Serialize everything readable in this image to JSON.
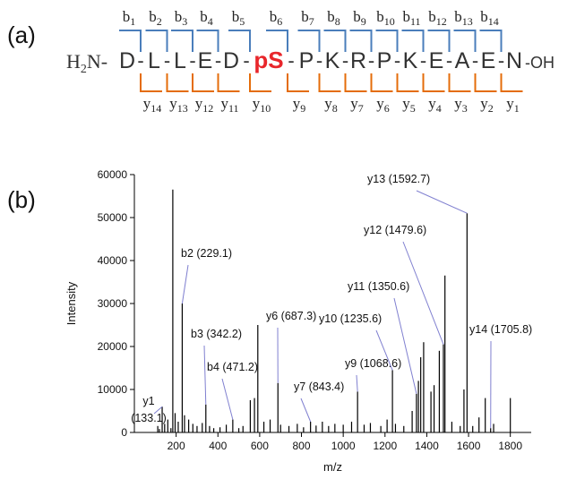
{
  "panel_a": {
    "label": "(a)",
    "n_term": {
      "text": "H",
      "sub": "2",
      "rest": "N-"
    },
    "residues": [
      "D",
      "L",
      "L",
      "E",
      "D",
      "pS",
      "P",
      "K",
      "R",
      "P",
      "K",
      "E",
      "A",
      "E",
      "N"
    ],
    "separator": "-",
    "c_term": "-OH",
    "highlight": {
      "index": 5,
      "color": "#e8262b"
    },
    "b_ions": {
      "letter": "b",
      "numbers": [
        1,
        2,
        3,
        4,
        5,
        6,
        7,
        8,
        9,
        10,
        11,
        12,
        13,
        14
      ],
      "color": "#4a7ebb"
    },
    "y_ions": {
      "letter": "y",
      "numbers": [
        14,
        13,
        12,
        11,
        10,
        9,
        8,
        7,
        6,
        5,
        4,
        3,
        2,
        1
      ],
      "color": "#e46c0a"
    }
  },
  "panel_b": {
    "label": "(b)"
  },
  "chart_data": {
    "type": "bar",
    "xlabel": "m/z",
    "ylabel": "Intensity",
    "color": "#000000",
    "xlim": [
      0,
      1900
    ],
    "ylim": [
      0,
      60000
    ],
    "xticks": [
      200,
      400,
      600,
      800,
      1000,
      1200,
      1400,
      1600,
      1800
    ],
    "yticks": [
      0,
      10000,
      20000,
      30000,
      40000,
      50000,
      60000
    ],
    "x": [
      112,
      120,
      145,
      160,
      175,
      184,
      195,
      210,
      240,
      260,
      280,
      300,
      325,
      360,
      380,
      410,
      440,
      500,
      520,
      555,
      575,
      591,
      620,
      650,
      700,
      740,
      780,
      810,
      870,
      900,
      930,
      960,
      1000,
      1040,
      1100,
      1130,
      1180,
      1210,
      1250,
      1290,
      1330,
      1360,
      1371,
      1385,
      1420,
      1435,
      1460,
      1487,
      1520,
      1560,
      1578,
      1620,
      1650,
      1680,
      1720,
      1800
    ],
    "values": [
      1500,
      800,
      2000,
      3000,
      1000,
      56500,
      4500,
      2500,
      4000,
      3000,
      2000,
      1500,
      2200,
      1500,
      1000,
      1200,
      1800,
      1000,
      1500,
      7500,
      8000,
      25000,
      2500,
      3000,
      1800,
      1500,
      2000,
      1200,
      1600,
      2500,
      1500,
      2000,
      1800,
      2500,
      1800,
      2200,
      1500,
      3000,
      2000,
      1500,
      5000,
      12000,
      17500,
      21000,
      9500,
      11000,
      19000,
      36500,
      2500,
      1500,
      10000,
      1500,
      3500,
      8000,
      2000,
      8000
    ],
    "annotation_color": "#8080d0",
    "annotations": [
      {
        "lines": [
          "y1",
          "(133.1)"
        ],
        "x": 133.1,
        "y": 6000
      },
      {
        "lines": [
          "b2 (229.1)"
        ],
        "x": 229.1,
        "y": 30000
      },
      {
        "lines": [
          "b3 (342.2)"
        ],
        "x": 342.2,
        "y": 6500
      },
      {
        "lines": [
          "b4 (471.2)"
        ],
        "x": 471.2,
        "y": 3000
      },
      {
        "lines": [
          "y6 (687.3)"
        ],
        "x": 687.3,
        "y": 11500
      },
      {
        "lines": [
          "y7 (843.4)"
        ],
        "x": 843.4,
        "y": 2500
      },
      {
        "lines": [
          "y9 (1068.6)"
        ],
        "x": 1068.6,
        "y": 9500
      },
      {
        "lines": [
          "y10 (1235.6)"
        ],
        "x": 1235.6,
        "y": 14500
      },
      {
        "lines": [
          "y11 (1350.6)"
        ],
        "x": 1350.6,
        "y": 9000
      },
      {
        "lines": [
          "y12 (1479.6)"
        ],
        "x": 1479.6,
        "y": 20500
      },
      {
        "lines": [
          "y13 (1592.7)"
        ],
        "x": 1592.7,
        "y": 51000
      },
      {
        "lines": [
          "y14 (1705.8)"
        ],
        "x": 1705.8,
        "y": 1000
      }
    ]
  }
}
